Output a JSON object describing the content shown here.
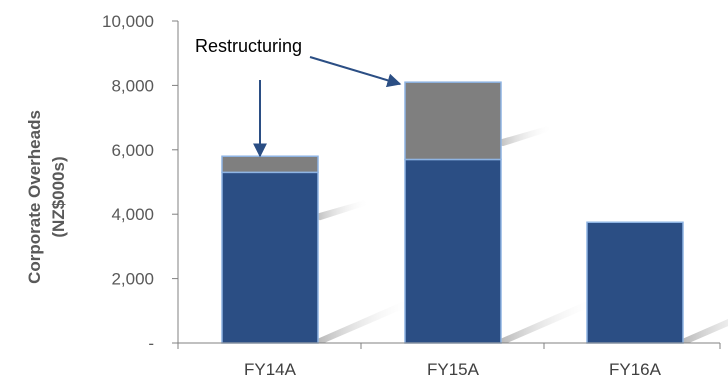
{
  "chart_data": {
    "type": "bar",
    "stacked": true,
    "categories": [
      "FY14A",
      "FY15A",
      "FY16A"
    ],
    "series": [
      {
        "values": [
          5300,
          5700,
          3750
        ],
        "color": "#2B4E84"
      },
      {
        "values": [
          500,
          2400,
          0
        ],
        "color": "#7F7F7F"
      }
    ],
    "ylabel": [
      "Corporate Overheads",
      "(NZ$000s)"
    ],
    "ylim": [
      0,
      10000
    ],
    "yticks": [
      0,
      2000,
      4000,
      6000,
      8000,
      10000
    ],
    "ytick_labels": [
      "-",
      "2,000",
      "4,000",
      "6,000",
      "8,000",
      "10,000"
    ],
    "grid": false,
    "annotation": {
      "text": "Restructuring",
      "targets": [
        "FY14A",
        "FY15A"
      ]
    },
    "colors": {
      "axis": "#808080",
      "bar_outline": "#8EB4E3",
      "arrow": "#2B4E84",
      "shadow": "#BFBFBF"
    }
  }
}
